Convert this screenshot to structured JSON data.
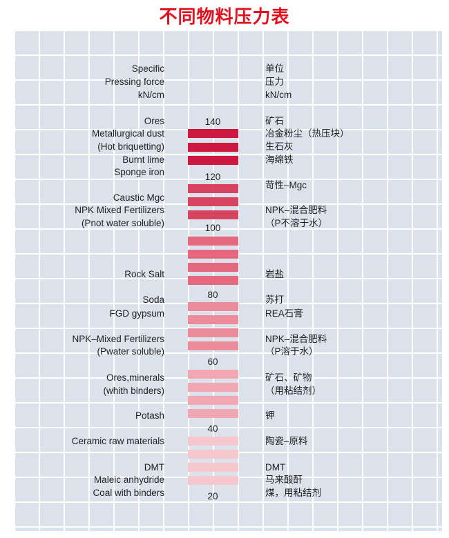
{
  "title": "不同物料压力表",
  "scale": [
    "140",
    "120",
    "100",
    "80",
    "60",
    "40",
    "20"
  ],
  "left_column": [
    "Specific",
    "Pressing force",
    "kN/cm",
    "Ores",
    "Metallurgical dust",
    "(Hot briquetting)",
    "Burnt lime",
    "Sponge iron",
    "Caustic Mgc",
    "NPK Mixed Fertilizers",
    "(Pnot water soluble)",
    "Rock Salt",
    "Soda",
    "FGD gypsum",
    "NPK–Mixed Fertilizers",
    "(Pwater soluble)",
    "Ores,minerals",
    "(whith binders)",
    "Potash",
    "Ceramic raw materials",
    "DMT",
    "Maleic anhydride",
    "Coal with binders"
  ],
  "right_column": [
    "单位",
    "压力",
    "kN/cm",
    "矿石",
    "冶金粉尘（热压块）",
    "生石灰",
    "海绵铁",
    "苛性–Mgc",
    "NPK–混合肥料",
    "（P不溶于水）",
    "岩盐",
    "苏打",
    "REA石膏",
    "NPK–混合肥料",
    "（P溶于水）",
    "矿石、矿物",
    "（用粘结剂）",
    "钾",
    "陶瓷–原料",
    "DMT",
    "马来酸酐",
    "煤，用粘结剂"
  ]
}
